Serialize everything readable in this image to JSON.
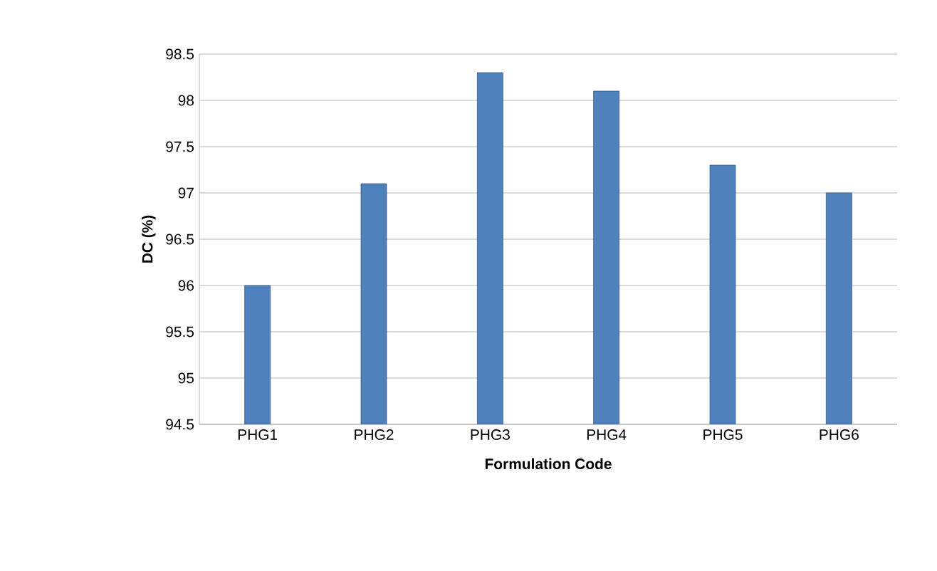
{
  "chart_data": {
    "type": "bar",
    "xlabel": "Formulation Code",
    "ylabel": "DC (%)",
    "categories": [
      "PHG1",
      "PHG2",
      "PHG3",
      "PHG4",
      "PHG5",
      "PHG6"
    ],
    "values": [
      96.0,
      97.1,
      98.3,
      98.1,
      97.3,
      97.0
    ],
    "color": "#4f81bd",
    "ylim": [
      94.5,
      98.5
    ],
    "yticks": [
      94.5,
      95,
      95.5,
      96,
      96.5,
      97,
      97.5,
      98,
      98.5
    ],
    "grid": "y"
  }
}
